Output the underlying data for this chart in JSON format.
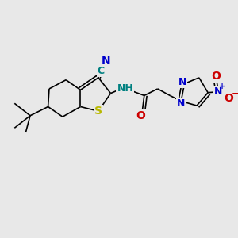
{
  "bg_color": "#e8e8e8",
  "bond_color": "#000000",
  "bond_width": 1.2,
  "atoms": {
    "S": {
      "color": "#b8b800"
    },
    "N": {
      "color": "#0000cc"
    },
    "O": {
      "color": "#cc0000"
    },
    "C": {
      "color": "#008080"
    },
    "H": {
      "color": "#008080"
    }
  },
  "figsize": [
    3.0,
    3.0
  ],
  "dpi": 100,
  "xlim": [
    0,
    10
  ],
  "ylim": [
    0,
    10
  ]
}
